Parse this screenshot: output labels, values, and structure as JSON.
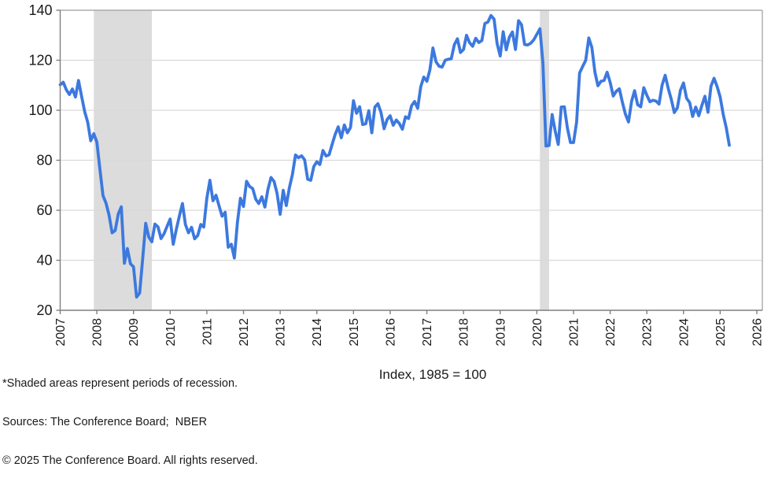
{
  "chart_data": {
    "type": "line",
    "title": "",
    "unit_label": "Index, 1985 = 100",
    "x_axis": {
      "tick_years": [
        2007,
        2008,
        2009,
        2010,
        2011,
        2012,
        2013,
        2014,
        2015,
        2016,
        2017,
        2018,
        2019,
        2020,
        2021,
        2022,
        2023,
        2024,
        2025,
        2026
      ],
      "start_year": 2007,
      "end_year": 2026
    },
    "y_axis": {
      "min": 20,
      "max": 140,
      "ticks": [
        20,
        40,
        60,
        80,
        100,
        120,
        140
      ]
    },
    "grid": "horizontal-only",
    "legend": "none",
    "series": [
      {
        "start_month": "2007-01",
        "end_month": "2025-04",
        "frequency": "monthly",
        "values": [
          110.2,
          111.2,
          108.2,
          106.3,
          108.5,
          105.3,
          111.9,
          105.6,
          99.5,
          95.2,
          87.8,
          90.6,
          87.3,
          76.4,
          65.9,
          62.8,
          58.1,
          51.0,
          51.9,
          58.5,
          61.4,
          38.8,
          44.7,
          38.6,
          37.4,
          25.3,
          26.9,
          40.8,
          54.8,
          49.3,
          47.4,
          54.5,
          53.4,
          48.7,
          50.6,
          53.6,
          56.5,
          46.4,
          52.3,
          57.7,
          62.7,
          54.3,
          51.0,
          53.2,
          48.6,
          49.9,
          54.3,
          53.3,
          64.8,
          72.0,
          63.8,
          66.0,
          61.7,
          57.6,
          59.2,
          45.2,
          46.4,
          40.9,
          55.2,
          64.8,
          61.5,
          71.6,
          69.5,
          68.7,
          64.4,
          62.7,
          65.4,
          61.3,
          68.4,
          73.1,
          71.5,
          66.7,
          58.4,
          68.0,
          61.9,
          69.0,
          74.3,
          82.1,
          81.0,
          81.8,
          80.2,
          72.4,
          72.0,
          77.5,
          79.4,
          78.3,
          83.9,
          81.7,
          82.2,
          86.4,
          90.3,
          93.4,
          89.0,
          94.1,
          91.0,
          93.1,
          103.8,
          98.8,
          101.4,
          94.3,
          94.6,
          99.8,
          91.0,
          101.3,
          102.6,
          99.1,
          92.6,
          96.3,
          97.8,
          94.0,
          96.1,
          94.7,
          92.4,
          97.4,
          96.7,
          101.8,
          103.5,
          100.8,
          109.4,
          113.3,
          111.6,
          116.1,
          124.9,
          119.4,
          117.6,
          117.3,
          120.0,
          120.4,
          120.6,
          126.2,
          128.6,
          123.1,
          124.3,
          130.0,
          127.0,
          125.6,
          128.8,
          127.1,
          127.9,
          134.7,
          135.3,
          137.9,
          136.4,
          126.6,
          121.7,
          131.4,
          124.2,
          129.2,
          131.3,
          124.3,
          135.8,
          134.2,
          126.3,
          126.1,
          126.8,
          128.2,
          130.4,
          132.6,
          118.8,
          85.7,
          85.9,
          98.3,
          91.7,
          86.3,
          101.3,
          101.4,
          92.9,
          87.1,
          87.1,
          95.2,
          114.9,
          117.5,
          120.0,
          128.9,
          125.1,
          115.2,
          109.8,
          111.6,
          111.9,
          115.2,
          111.1,
          105.7,
          107.6,
          108.6,
          103.2,
          98.4,
          95.3,
          103.6,
          107.8,
          102.2,
          101.4,
          109.0,
          106.0,
          103.4,
          104.0,
          103.7,
          102.5,
          110.1,
          114.0,
          108.7,
          104.3,
          99.1,
          101.0,
          108.0,
          110.9,
          104.8,
          103.1,
          97.5,
          101.3,
          97.8,
          101.9,
          105.6,
          99.2,
          109.6,
          112.8,
          109.5,
          105.3,
          98.3,
          92.9,
          86.0
        ]
      }
    ],
    "recession_bands": [
      {
        "start_month": "2007-12",
        "end_month": "2009-06"
      },
      {
        "start_month": "2020-02",
        "end_month": "2020-04"
      }
    ],
    "colors": {
      "line": "#3C79DF",
      "grid": "#D9D9D9",
      "band": "#DCDCDC",
      "axis": "#7F7F7F",
      "border": "#ABABAB",
      "text": "#1A1A1A"
    }
  },
  "footnotes": {
    "line1": "*Shaded areas represent periods of recession.",
    "line2": "Sources: The Conference Board;  NBER",
    "line3": "© 2025 The Conference Board. All rights reserved."
  }
}
